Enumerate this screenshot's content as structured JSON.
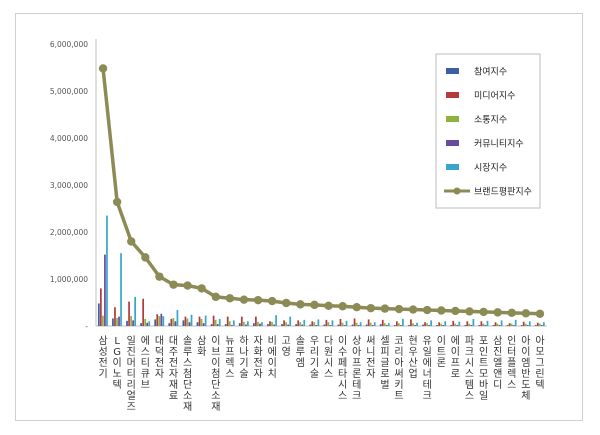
{
  "chart_data": {
    "type": "bar",
    "categories": [
      "삼성전기",
      "LG이노텍",
      "일진머티리얼즈",
      "에스티큐브",
      "대덕전자",
      "대주전자재료",
      "솔루스첨단소재",
      "삼화",
      "이브이첨단소재",
      "뉴프렉스",
      "하나기술",
      "자화전자",
      "비에이치",
      "고영",
      "솔루엠",
      "우리기술",
      "다원시스",
      "이수페타시스",
      "상아프론테크",
      "써니전자",
      "셀피글로벌",
      "코리아써키트",
      "현우산업",
      "유일에너테크",
      "이트론",
      "에이프로",
      "파크시스템스",
      "포인트모바일",
      "삼진엘앤디",
      "인터플렉스",
      "아이엠반도체",
      "아모그린텍"
    ],
    "series": [
      {
        "name": "참여지수",
        "color": "#3b5fa5",
        "values": [
          480000,
          160000,
          110000,
          60000,
          140000,
          60000,
          120000,
          80000,
          40000,
          40000,
          60000,
          60000,
          40000,
          40000,
          40000,
          30000,
          30000,
          30000,
          30000,
          30000,
          40000,
          20000,
          20000,
          30000,
          20000,
          20000,
          20000,
          20000,
          20000,
          20000,
          20000,
          20000
        ]
      },
      {
        "name": "미디어지수",
        "color": "#b53b3b",
        "values": [
          800000,
          400000,
          520000,
          580000,
          250000,
          150000,
          200000,
          200000,
          220000,
          200000,
          200000,
          200000,
          100000,
          120000,
          120000,
          100000,
          130000,
          150000,
          160000,
          140000,
          130000,
          100000,
          140000,
          80000,
          80000,
          110000,
          100000,
          100000,
          80000,
          60000,
          90000,
          70000
        ]
      },
      {
        "name": "소통지수",
        "color": "#8db33d",
        "values": [
          220000,
          170000,
          210000,
          150000,
          210000,
          170000,
          160000,
          150000,
          130000,
          100000,
          90000,
          90000,
          90000,
          80000,
          80000,
          80000,
          80000,
          70000,
          70000,
          70000,
          60000,
          60000,
          60000,
          60000,
          50000,
          50000,
          50000,
          50000,
          50000,
          50000,
          50000,
          50000
        ]
      },
      {
        "name": "커뮤니티지수",
        "color": "#6a4a9c",
        "values": [
          1520000,
          200000,
          120000,
          70000,
          260000,
          100000,
          80000,
          60000,
          40000,
          20000,
          30000,
          50000,
          30000,
          30000,
          30000,
          20000,
          20000,
          20000,
          20000,
          20000,
          20000,
          20000,
          20000,
          20000,
          20000,
          20000,
          20000,
          20000,
          20000,
          20000,
          20000,
          20000
        ]
      },
      {
        "name": "시장지수",
        "color": "#39a6c9",
        "values": [
          2350000,
          1550000,
          620000,
          100000,
          210000,
          340000,
          240000,
          220000,
          150000,
          120000,
          100000,
          80000,
          230000,
          200000,
          130000,
          140000,
          120000,
          110000,
          80000,
          80000,
          60000,
          150000,
          70000,
          120000,
          100000,
          90000,
          150000,
          110000,
          120000,
          130000,
          100000,
          80000
        ]
      },
      {
        "name": "브랜드평판지수",
        "color": "#8c8a55",
        "values": [
          5480000,
          2640000,
          1800000,
          1460000,
          1050000,
          880000,
          860000,
          800000,
          620000,
          590000,
          560000,
          550000,
          530000,
          490000,
          460000,
          450000,
          430000,
          420000,
          400000,
          380000,
          370000,
          360000,
          350000,
          340000,
          330000,
          320000,
          310000,
          300000,
          290000,
          280000,
          270000,
          260000
        ]
      }
    ],
    "line_series": "브랜드평판지수",
    "ytick_labels": [
      "-",
      "1,000,000",
      "2,000,000",
      "3,000,000",
      "4,000,000",
      "5,000,000",
      "6,000,000"
    ],
    "ylim": [
      0,
      6000000
    ],
    "legend": "top-right",
    "grid": false
  }
}
